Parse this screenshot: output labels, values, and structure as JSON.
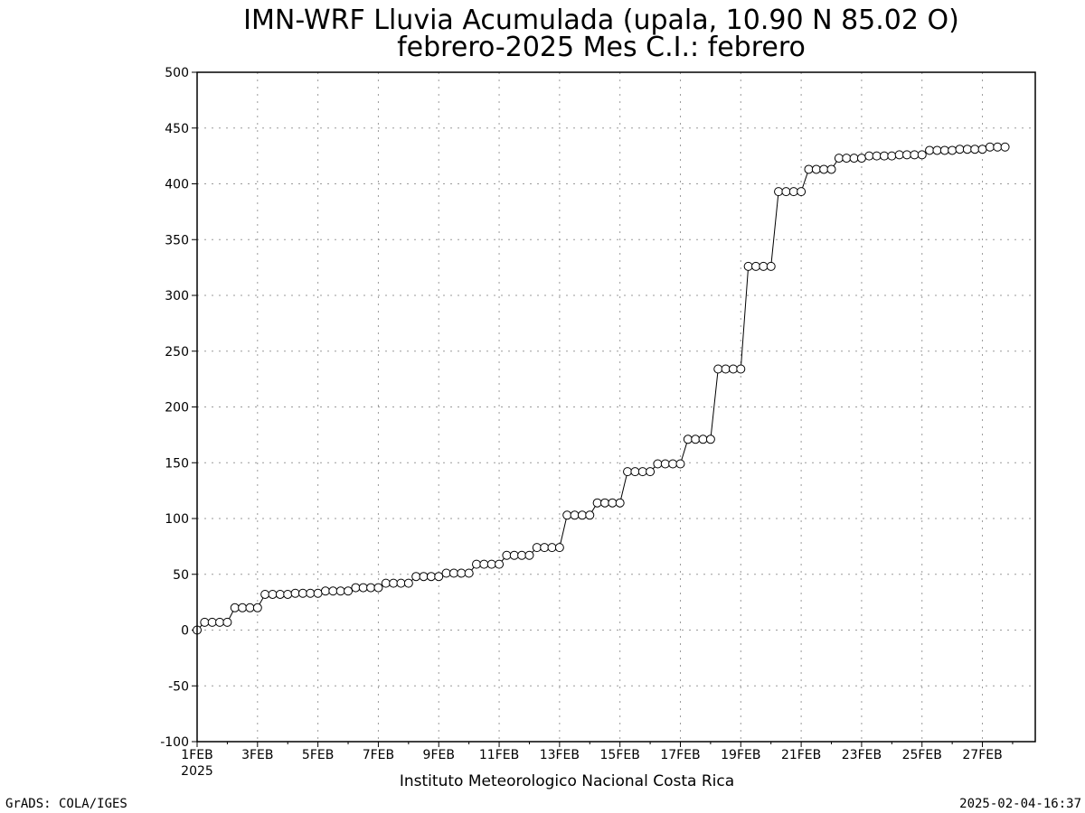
{
  "chart_data": {
    "type": "line",
    "title_line1": "IMN-WRF  Lluvia Acumulada (upala, 10.90  N 85.02  O)",
    "title_line2": "febrero-2025 Mes C.I.: febrero",
    "ylim": [
      -100,
      500
    ],
    "y_ticks": [
      "-100",
      "-50",
      "0",
      "50",
      "100",
      "150",
      "200",
      "250",
      "300",
      "350",
      "400",
      "450",
      "500"
    ],
    "x_ticks": [
      "1FEB",
      "3FEB",
      "5FEB",
      "7FEB",
      "9FEB",
      "11FEB",
      "13FEB",
      "15FEB",
      "17FEB",
      "19FEB",
      "21FEB",
      "23FEB",
      "25FEB",
      "27FEB"
    ],
    "x_year_label": "2025",
    "xlim_days": [
      1,
      28.75
    ],
    "grid": true,
    "step_hours": 6,
    "series": [
      {
        "values": [
          0,
          7,
          7,
          7,
          7,
          20,
          20,
          20,
          20,
          32,
          32,
          32,
          32,
          33,
          33,
          33,
          33,
          35,
          35,
          35,
          35,
          38,
          38,
          38,
          38,
          42,
          42,
          42,
          42,
          48,
          48,
          48,
          48,
          51,
          51,
          51,
          51,
          59,
          59,
          59,
          59,
          67,
          67,
          67,
          67,
          74,
          74,
          74,
          74,
          103,
          103,
          103,
          103,
          114,
          114,
          114,
          114,
          142,
          142,
          142,
          142,
          149,
          149,
          149,
          149,
          171,
          171,
          171,
          171,
          234,
          234,
          234,
          234,
          326,
          326,
          326,
          326,
          393,
          393,
          393,
          393,
          413,
          413,
          413,
          413,
          423,
          423,
          423,
          423,
          425,
          425,
          425,
          425,
          426,
          426,
          426,
          426,
          430,
          430,
          430,
          430,
          431,
          431,
          431,
          431,
          433,
          433,
          433
        ]
      }
    ]
  },
  "footer": {
    "credit": "Instituto Meteorologico Nacional Costa Rica",
    "grads": "GrADS: COLA/IGES",
    "timestamp": "2025-02-04-16:37"
  }
}
